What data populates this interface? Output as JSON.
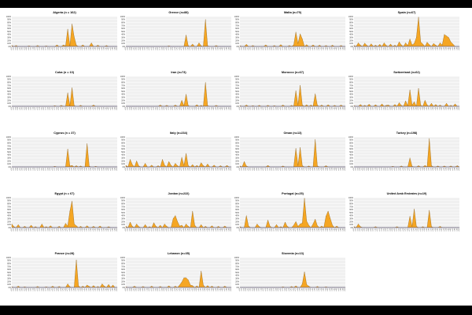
{
  "page": {
    "background": "#ffffff",
    "bar_color": "#000000"
  },
  "style": {
    "area_fill": "#f5a623",
    "area_stroke": "#8a5a10",
    "plot_bg": "#f0f0f0",
    "grid_color": "#ffffff",
    "baseline_color": "#3b4aa0"
  },
  "shared_axis": {
    "y_ticks": [
      "0%",
      "10%",
      "20%",
      "30%",
      "40%",
      "50%",
      "60%",
      "70%",
      "80%",
      "90%",
      "100%"
    ],
    "categories": [
      "c01",
      "c02",
      "c03",
      "c04",
      "c05",
      "c06",
      "c07",
      "c08",
      "c09",
      "c10",
      "c11",
      "c12",
      "c13",
      "c14",
      "c15",
      "c16",
      "c17",
      "c18",
      "c19",
      "c20",
      "c21",
      "c22",
      "c23",
      "c24",
      "c25",
      "c26",
      "c27",
      "c28",
      "c29",
      "c30",
      "c31",
      "c32",
      "c33",
      "c34",
      "c35",
      "c36",
      "c37",
      "c38",
      "c39",
      "c40",
      "c41",
      "c42",
      "c43",
      "c44",
      "c45",
      "c46",
      "c47",
      "c48",
      "c49",
      "c50"
    ]
  },
  "chart_data": [
    {
      "type": "area",
      "title": "Algeria (n = 162)",
      "ylim": [
        0,
        100
      ],
      "peaks": [
        [
          0,
          3
        ],
        [
          2,
          3
        ],
        [
          8,
          2
        ],
        [
          12,
          3
        ],
        [
          16,
          2
        ],
        [
          21,
          5
        ],
        [
          24,
          5
        ],
        [
          25,
          2
        ],
        [
          26,
          58
        ],
        [
          27,
          2
        ],
        [
          28,
          75
        ],
        [
          29,
          32
        ],
        [
          30,
          4
        ],
        [
          33,
          5
        ],
        [
          37,
          12
        ],
        [
          40,
          4
        ],
        [
          44,
          3
        ]
      ]
    },
    {
      "type": "area",
      "title": "Greece (n=88)",
      "ylim": [
        0,
        100
      ],
      "peaks": [
        [
          20,
          2
        ],
        [
          28,
          38
        ],
        [
          29,
          2
        ],
        [
          31,
          8
        ],
        [
          34,
          12
        ],
        [
          35,
          2
        ],
        [
          37,
          90
        ],
        [
          38,
          2
        ],
        [
          42,
          3
        ]
      ]
    },
    {
      "type": "area",
      "title": "Malta (n=79)",
      "ylim": [
        0,
        100
      ],
      "peaks": [
        [
          0,
          2
        ],
        [
          3,
          7
        ],
        [
          6,
          3
        ],
        [
          12,
          5
        ],
        [
          16,
          3
        ],
        [
          19,
          6
        ],
        [
          23,
          3
        ],
        [
          25,
          5
        ],
        [
          26,
          48
        ],
        [
          27,
          10
        ],
        [
          28,
          42
        ],
        [
          29,
          25
        ],
        [
          31,
          6
        ],
        [
          34,
          5
        ],
        [
          37,
          4
        ],
        [
          40,
          3
        ],
        [
          43,
          4
        ],
        [
          47,
          3
        ]
      ]
    },
    {
      "type": "area",
      "title": "Spain (n=67)",
      "ylim": [
        0,
        100
      ],
      "peaks": [
        [
          0,
          3
        ],
        [
          2,
          12
        ],
        [
          3,
          4
        ],
        [
          5,
          11
        ],
        [
          6,
          3
        ],
        [
          8,
          9
        ],
        [
          10,
          4
        ],
        [
          12,
          7
        ],
        [
          14,
          12
        ],
        [
          15,
          3
        ],
        [
          17,
          8
        ],
        [
          19,
          4
        ],
        [
          21,
          15
        ],
        [
          22,
          5
        ],
        [
          24,
          12
        ],
        [
          25,
          3
        ],
        [
          26,
          25
        ],
        [
          27,
          5
        ],
        [
          28,
          10
        ],
        [
          29,
          30
        ],
        [
          30,
          98
        ],
        [
          31,
          15
        ],
        [
          32,
          8
        ],
        [
          34,
          14
        ],
        [
          35,
          6
        ],
        [
          37,
          10
        ],
        [
          38,
          4
        ],
        [
          40,
          12
        ],
        [
          41,
          5
        ],
        [
          42,
          40
        ],
        [
          43,
          35
        ],
        [
          44,
          30
        ],
        [
          45,
          15
        ],
        [
          46,
          8
        ]
      ]
    },
    {
      "type": "area",
      "title": "Cuba (n = 10)",
      "ylim": [
        0,
        100
      ],
      "peaks": [
        [
          20,
          2
        ],
        [
          23,
          3
        ],
        [
          26,
          45
        ],
        [
          27,
          2
        ],
        [
          28,
          62
        ],
        [
          29,
          2
        ],
        [
          32,
          3
        ],
        [
          38,
          4
        ]
      ]
    },
    {
      "type": "area",
      "title": "Iran (n=73)",
      "ylim": [
        0,
        100
      ],
      "peaks": [
        [
          16,
          4
        ],
        [
          19,
          3
        ],
        [
          23,
          4
        ],
        [
          26,
          20
        ],
        [
          27,
          2
        ],
        [
          28,
          40
        ],
        [
          29,
          2
        ],
        [
          33,
          5
        ],
        [
          35,
          3
        ],
        [
          37,
          80
        ],
        [
          38,
          2
        ],
        [
          42,
          3
        ]
      ]
    },
    {
      "type": "area",
      "title": "Morocco (n=67)",
      "ylim": [
        0,
        100
      ],
      "peaks": [
        [
          0,
          2
        ],
        [
          3,
          4
        ],
        [
          6,
          2
        ],
        [
          9,
          3
        ],
        [
          13,
          3
        ],
        [
          16,
          2
        ],
        [
          20,
          4
        ],
        [
          24,
          3
        ],
        [
          26,
          52
        ],
        [
          27,
          5
        ],
        [
          28,
          70
        ],
        [
          29,
          4
        ],
        [
          31,
          5
        ],
        [
          33,
          4
        ],
        [
          35,
          42
        ],
        [
          36,
          3
        ],
        [
          38,
          4
        ],
        [
          41,
          5
        ],
        [
          44,
          3
        ],
        [
          47,
          4
        ]
      ]
    },
    {
      "type": "area",
      "title": "Switzerland (n=62)",
      "ylim": [
        0,
        100
      ],
      "peaks": [
        [
          0,
          2
        ],
        [
          3,
          6
        ],
        [
          5,
          3
        ],
        [
          7,
          7
        ],
        [
          10,
          5
        ],
        [
          13,
          8
        ],
        [
          15,
          3
        ],
        [
          16,
          4
        ],
        [
          19,
          6
        ],
        [
          21,
          12
        ],
        [
          22,
          3
        ],
        [
          24,
          18
        ],
        [
          25,
          2
        ],
        [
          26,
          55
        ],
        [
          27,
          4
        ],
        [
          28,
          15
        ],
        [
          30,
          60
        ],
        [
          31,
          4
        ],
        [
          33,
          20
        ],
        [
          34,
          4
        ],
        [
          36,
          10
        ],
        [
          38,
          6
        ],
        [
          40,
          4
        ],
        [
          43,
          10
        ],
        [
          45,
          3
        ],
        [
          47,
          8
        ]
      ]
    },
    {
      "type": "area",
      "title": "Cyprus (n = 37)",
      "ylim": [
        0,
        100
      ],
      "peaks": [
        [
          20,
          2
        ],
        [
          26,
          60
        ],
        [
          27,
          3
        ],
        [
          28,
          5
        ],
        [
          30,
          4
        ],
        [
          32,
          3
        ],
        [
          35,
          78
        ],
        [
          36,
          2
        ],
        [
          39,
          2
        ]
      ]
    },
    {
      "type": "area",
      "title": "Italy (n=234)",
      "ylim": [
        0,
        100
      ],
      "peaks": [
        [
          0,
          5
        ],
        [
          2,
          25
        ],
        [
          3,
          8
        ],
        [
          5,
          20
        ],
        [
          6,
          3
        ],
        [
          9,
          12
        ],
        [
          12,
          6
        ],
        [
          15,
          4
        ],
        [
          17,
          25
        ],
        [
          18,
          6
        ],
        [
          20,
          18
        ],
        [
          21,
          5
        ],
        [
          23,
          12
        ],
        [
          24,
          4
        ],
        [
          26,
          32
        ],
        [
          27,
          5
        ],
        [
          28,
          45
        ],
        [
          29,
          4
        ],
        [
          31,
          8
        ],
        [
          33,
          5
        ],
        [
          35,
          14
        ],
        [
          36,
          4
        ],
        [
          38,
          10
        ],
        [
          41,
          6
        ],
        [
          44,
          4
        ],
        [
          47,
          5
        ]
      ]
    },
    {
      "type": "area",
      "title": "Oman (n=13)",
      "ylim": [
        0,
        100
      ],
      "peaks": [
        [
          0,
          3
        ],
        [
          2,
          18
        ],
        [
          3,
          3
        ],
        [
          13,
          5
        ],
        [
          20,
          3
        ],
        [
          26,
          62
        ],
        [
          27,
          5
        ],
        [
          28,
          65
        ],
        [
          29,
          4
        ],
        [
          32,
          3
        ],
        [
          35,
          92
        ],
        [
          36,
          3
        ],
        [
          40,
          4
        ]
      ]
    },
    {
      "type": "area",
      "title": "Turkey (n=198)",
      "ylim": [
        0,
        100
      ],
      "peaks": [
        [
          18,
          2
        ],
        [
          22,
          3
        ],
        [
          26,
          30
        ],
        [
          27,
          2
        ],
        [
          30,
          4
        ],
        [
          33,
          5
        ],
        [
          35,
          95
        ],
        [
          36,
          4
        ],
        [
          39,
          3
        ],
        [
          42,
          3
        ],
        [
          45,
          3
        ],
        [
          48,
          4
        ]
      ]
    },
    {
      "type": "area",
      "title": "Egypt (n = 67)",
      "ylim": [
        0,
        100
      ],
      "peaks": [
        [
          0,
          12
        ],
        [
          1,
          3
        ],
        [
          3,
          10
        ],
        [
          6,
          4
        ],
        [
          9,
          8
        ],
        [
          11,
          3
        ],
        [
          14,
          12
        ],
        [
          16,
          3
        ],
        [
          18,
          6
        ],
        [
          22,
          4
        ],
        [
          25,
          14
        ],
        [
          26,
          5
        ],
        [
          27,
          55
        ],
        [
          28,
          88
        ],
        [
          29,
          12
        ],
        [
          30,
          6
        ],
        [
          32,
          4
        ],
        [
          35,
          6
        ],
        [
          38,
          4
        ],
        [
          41,
          5
        ],
        [
          45,
          3
        ]
      ]
    },
    {
      "type": "area",
      "title": "Jordan (n=222)",
      "ylim": [
        0,
        100
      ],
      "peaks": [
        [
          0,
          4
        ],
        [
          2,
          18
        ],
        [
          3,
          4
        ],
        [
          5,
          12
        ],
        [
          6,
          3
        ],
        [
          9,
          10
        ],
        [
          11,
          3
        ],
        [
          13,
          16
        ],
        [
          14,
          4
        ],
        [
          16,
          8
        ],
        [
          18,
          12
        ],
        [
          19,
          4
        ],
        [
          22,
          30
        ],
        [
          23,
          40
        ],
        [
          24,
          20
        ],
        [
          25,
          5
        ],
        [
          26,
          8
        ],
        [
          28,
          12
        ],
        [
          29,
          4
        ],
        [
          31,
          55
        ],
        [
          32,
          8
        ],
        [
          35,
          10
        ],
        [
          37,
          4
        ],
        [
          40,
          6
        ],
        [
          43,
          4
        ],
        [
          46,
          5
        ]
      ]
    },
    {
      "type": "area",
      "title": "Portugal (n=25)",
      "ylim": [
        0,
        100
      ],
      "peaks": [
        [
          0,
          3
        ],
        [
          3,
          40
        ],
        [
          4,
          5
        ],
        [
          8,
          12
        ],
        [
          9,
          3
        ],
        [
          13,
          25
        ],
        [
          14,
          4
        ],
        [
          17,
          10
        ],
        [
          19,
          3
        ],
        [
          21,
          18
        ],
        [
          22,
          4
        ],
        [
          25,
          8
        ],
        [
          26,
          20
        ],
        [
          27,
          4
        ],
        [
          28,
          12
        ],
        [
          29,
          15
        ],
        [
          30,
          98
        ],
        [
          31,
          22
        ],
        [
          32,
          8
        ],
        [
          34,
          12
        ],
        [
          35,
          28
        ],
        [
          36,
          6
        ],
        [
          38,
          5
        ],
        [
          40,
          38
        ],
        [
          41,
          55
        ],
        [
          42,
          30
        ],
        [
          43,
          8
        ],
        [
          45,
          5
        ]
      ]
    },
    {
      "type": "area",
      "title": "United Arab Emirates (n=19)",
      "ylim": [
        0,
        100
      ],
      "peaks": [
        [
          0,
          3
        ],
        [
          2,
          12
        ],
        [
          3,
          3
        ],
        [
          10,
          3
        ],
        [
          20,
          3
        ],
        [
          26,
          38
        ],
        [
          27,
          4
        ],
        [
          28,
          62
        ],
        [
          29,
          4
        ],
        [
          32,
          3
        ],
        [
          35,
          58
        ],
        [
          36,
          3
        ],
        [
          40,
          4
        ]
      ]
    },
    {
      "type": "area",
      "title": "France (n=28)",
      "ylim": [
        0,
        100
      ],
      "peaks": [
        [
          0,
          2
        ],
        [
          3,
          4
        ],
        [
          6,
          2
        ],
        [
          12,
          3
        ],
        [
          16,
          2
        ],
        [
          19,
          4
        ],
        [
          22,
          3
        ],
        [
          26,
          12
        ],
        [
          27,
          2
        ],
        [
          30,
          92
        ],
        [
          31,
          5
        ],
        [
          33,
          4
        ],
        [
          35,
          8
        ],
        [
          36,
          3
        ],
        [
          38,
          6
        ],
        [
          40,
          3
        ],
        [
          42,
          12
        ],
        [
          43,
          4
        ],
        [
          45,
          10
        ],
        [
          47,
          8
        ]
      ]
    },
    {
      "type": "area",
      "title": "Lebanon (n=35)",
      "ylim": [
        0,
        100
      ],
      "peaks": [
        [
          0,
          2
        ],
        [
          4,
          4
        ],
        [
          8,
          3
        ],
        [
          12,
          4
        ],
        [
          16,
          3
        ],
        [
          20,
          5
        ],
        [
          23,
          4
        ],
        [
          25,
          8
        ],
        [
          26,
          18
        ],
        [
          27,
          32
        ],
        [
          28,
          32
        ],
        [
          29,
          25
        ],
        [
          30,
          8
        ],
        [
          31,
          6
        ],
        [
          33,
          5
        ],
        [
          35,
          55
        ],
        [
          36,
          8
        ],
        [
          38,
          6
        ],
        [
          40,
          4
        ],
        [
          43,
          3
        ],
        [
          46,
          4
        ]
      ]
    },
    {
      "type": "area",
      "title": "Slovenia (n=13)",
      "ylim": [
        0,
        100
      ],
      "peaks": [
        [
          20,
          2
        ],
        [
          24,
          3
        ],
        [
          26,
          5
        ],
        [
          29,
          12
        ],
        [
          30,
          52
        ],
        [
          31,
          10
        ],
        [
          32,
          4
        ],
        [
          36,
          3
        ],
        [
          40,
          2
        ]
      ]
    }
  ]
}
